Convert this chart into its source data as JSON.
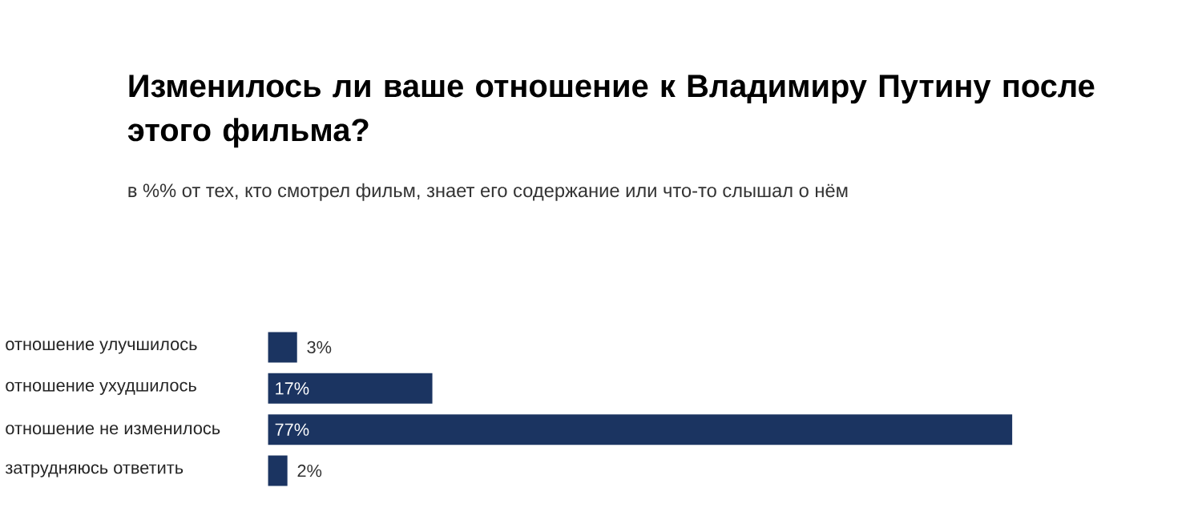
{
  "chart_data": {
    "type": "bar",
    "orientation": "horizontal",
    "title": "Изменилось ли ваше отношение к Владимиру Путину после этого фильма?",
    "subtitle": "в %% от тех, кто смотрел фильм, знает его содержание или что-то слышал о нём",
    "categories": [
      "отношение улучшилось",
      "отношение ухудшилось",
      "отношение не изменилось",
      "затрудняюсь ответить"
    ],
    "values": [
      3,
      17,
      77,
      2
    ],
    "value_labels": [
      "3%",
      "17%",
      "77%",
      "2%"
    ],
    "color": "#1b3461"
  }
}
